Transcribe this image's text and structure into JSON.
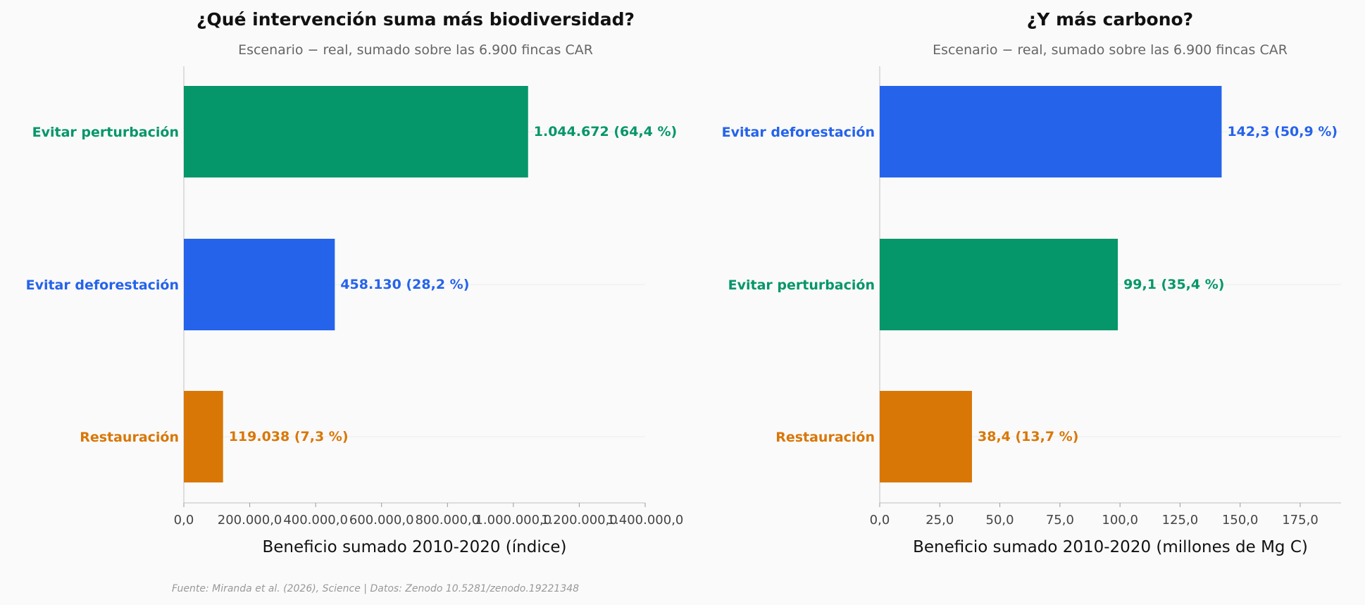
{
  "chart_data": [
    {
      "type": "bar",
      "orientation": "horizontal",
      "title": "¿Qué intervención suma más biodiversidad?",
      "subtitle": "Escenario − real, sumado sobre las 6.900 fincas CAR",
      "xlabel": "Beneficio sumado 2010-2020 (índice)",
      "ylabel": "",
      "xlim": [
        0,
        1400000
      ],
      "ticks": [
        "0,0",
        "200.000,0",
        "400.000,0",
        "600.000,0",
        "800.000,0",
        "1.000.000,0",
        "1.200.000,0",
        "1.400.000,0"
      ],
      "tick_values": [
        0,
        200000,
        400000,
        600000,
        800000,
        1000000,
        1200000,
        1400000
      ],
      "grid": "horizontal only",
      "categories": [
        "Evitar perturbación",
        "Evitar deforestación",
        "Restauración"
      ],
      "values": [
        1044672,
        458130,
        119038
      ],
      "value_labels": [
        "1.044.672  (64,4 %)",
        "458.130  (28,2 %)",
        "119.038  (7,3 %)"
      ],
      "colors": [
        "#059669",
        "#2563eb",
        "#d97706"
      ]
    },
    {
      "type": "bar",
      "orientation": "horizontal",
      "title": "¿Y más carbono?",
      "subtitle": "Escenario − real, sumado sobre las 6.900 fincas CAR",
      "xlabel": "Beneficio sumado 2010-2020 (millones de Mg C)",
      "ylabel": "",
      "xlim": [
        0,
        192
      ],
      "ticks": [
        "0,0",
        "25,0",
        "50,0",
        "75,0",
        "100,0",
        "125,0",
        "150,0",
        "175,0"
      ],
      "tick_values": [
        0,
        25,
        50,
        75,
        100,
        125,
        150,
        175
      ],
      "grid": "horizontal only",
      "categories": [
        "Evitar deforestación",
        "Evitar perturbación",
        "Restauración"
      ],
      "values": [
        142.3,
        99.1,
        38.4
      ],
      "value_labels": [
        "142,3  (50,9 %)",
        "99,1  (35,4 %)",
        "38,4  (13,7 %)"
      ],
      "colors": [
        "#2563eb",
        "#059669",
        "#d97706"
      ]
    }
  ],
  "source": "Fuente: Miranda et al. (2026), Science | Datos: Zenodo 10.5281/zenodo.19221348"
}
